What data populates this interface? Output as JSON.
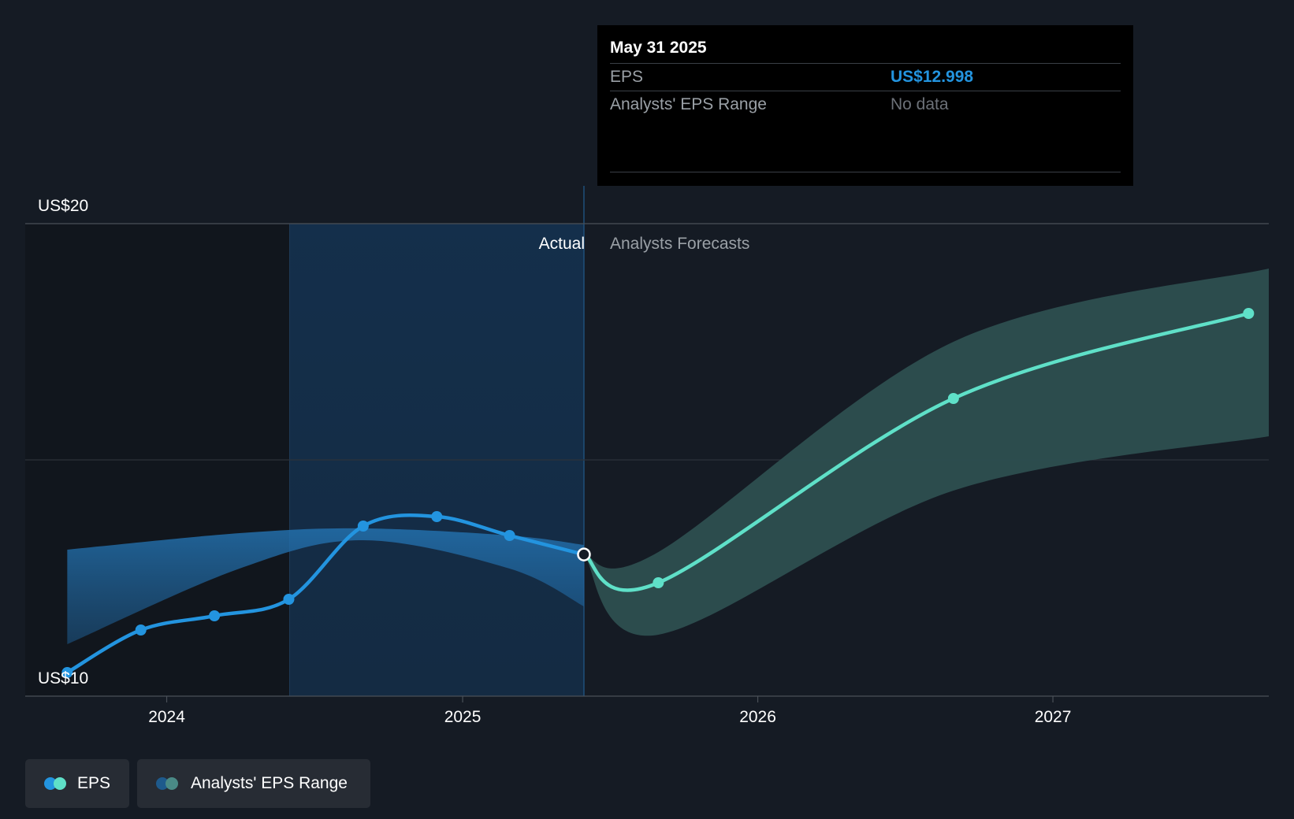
{
  "colors": {
    "background": "#151b24",
    "eps_actual": "#2394df",
    "eps_forecast": "#5fe0c8",
    "range_actual": "#1e5a8c",
    "range_forecast": "#2d4f50",
    "past_shade": "#14304d"
  },
  "tooltip": {
    "date": "May 31 2025",
    "eps_label": "EPS",
    "eps_value": "US$12.998",
    "range_label": "Analysts' EPS Range",
    "range_value": "No data"
  },
  "labels": {
    "actual": "Actual",
    "forecast": "Analysts Forecasts"
  },
  "legend": {
    "eps": "EPS",
    "range": "Analysts' EPS Range"
  },
  "chart_data": {
    "type": "line",
    "y_ticks": [
      {
        "value": 20,
        "label": "US$20"
      },
      {
        "value": 10,
        "label": "US$10"
      }
    ],
    "ylim": [
      10,
      20
    ],
    "grid_values": [
      20,
      15
    ],
    "x_ticks": [
      {
        "date": "2024-01-01",
        "label": "2024"
      },
      {
        "date": "2025-01-01",
        "label": "2025"
      },
      {
        "date": "2026-01-01",
        "label": "2026"
      },
      {
        "date": "2027-01-01",
        "label": "2027"
      }
    ],
    "xlim": [
      "2023-07-10",
      "2027-09-25"
    ],
    "highlight_start": "2024-06-01",
    "divider_date": "2025-05-31",
    "series": [
      {
        "name": "EPS",
        "kind": "actual",
        "points": [
          {
            "date": "2023-08-31",
            "value": 10.5
          },
          {
            "date": "2023-11-30",
            "value": 11.4
          },
          {
            "date": "2024-02-29",
            "value": 11.7
          },
          {
            "date": "2024-05-31",
            "value": 12.05
          },
          {
            "date": "2024-08-31",
            "value": 13.6
          },
          {
            "date": "2024-11-30",
            "value": 13.8
          },
          {
            "date": "2025-02-28",
            "value": 13.4
          },
          {
            "date": "2025-05-31",
            "value": 12.998
          }
        ]
      },
      {
        "name": "EPS",
        "kind": "forecast",
        "points": [
          {
            "date": "2025-05-31",
            "value": 12.998
          },
          {
            "date": "2025-08-31",
            "value": 12.4
          },
          {
            "date": "2026-08-31",
            "value": 16.3
          },
          {
            "date": "2027-08-31",
            "value": 18.1
          }
        ]
      }
    ],
    "range_actual": {
      "high": [
        {
          "date": "2023-08-31",
          "value": 13.1
        },
        {
          "date": "2024-03-31",
          "value": 13.45
        },
        {
          "date": "2024-08-31",
          "value": 13.55
        },
        {
          "date": "2025-02-28",
          "value": 13.4
        },
        {
          "date": "2025-05-31",
          "value": 13.2
        }
      ],
      "low": [
        {
          "date": "2023-08-31",
          "value": 11.1
        },
        {
          "date": "2024-03-31",
          "value": 12.7
        },
        {
          "date": "2024-08-31",
          "value": 13.3
        },
        {
          "date": "2025-02-28",
          "value": 12.7
        },
        {
          "date": "2025-05-31",
          "value": 11.9
        }
      ]
    },
    "range_forecast": {
      "high": [
        {
          "date": "2025-05-31",
          "value": 12.99
        },
        {
          "date": "2025-08-31",
          "value": 13.05
        },
        {
          "date": "2026-08-31",
          "value": 17.5
        },
        {
          "date": "2027-09-25",
          "value": 19.05
        }
      ],
      "low": [
        {
          "date": "2025-05-31",
          "value": 12.99
        },
        {
          "date": "2025-08-31",
          "value": 11.3
        },
        {
          "date": "2026-08-31",
          "value": 14.35
        },
        {
          "date": "2027-09-25",
          "value": 15.5
        }
      ]
    }
  }
}
